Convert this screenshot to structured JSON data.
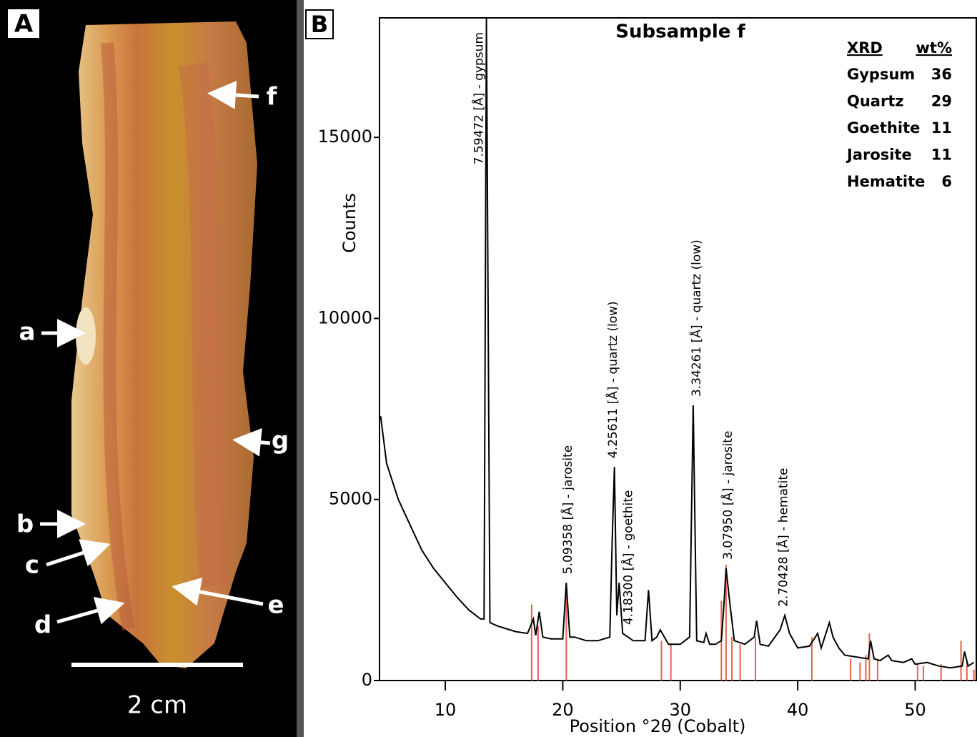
{
  "panel_a": {
    "label": "A",
    "arrow_labels": [
      "a",
      "b",
      "c",
      "d",
      "e",
      "f",
      "g"
    ],
    "scale_bar": "2 cm"
  },
  "chart_data": {
    "type": "line",
    "panel_label": "B",
    "title": "Subsample f",
    "x_label": "Position °2θ (Cobalt)",
    "y_label": "Counts",
    "xlim": [
      4.4,
      55.2
    ],
    "ylim": [
      0,
      18300
    ],
    "xticks": [
      10,
      20,
      30,
      40,
      50
    ],
    "yticks": [
      0,
      5000,
      10000,
      15000
    ],
    "series": [
      {
        "color": "#000000",
        "x": [
          4.5,
          5,
          6,
          7,
          8,
          9,
          10,
          11,
          12,
          13,
          13.3,
          13.5,
          13.8,
          14.5,
          16,
          17,
          17.5,
          17.7,
          18,
          18.3,
          19,
          20,
          20.3,
          20.6,
          21,
          22,
          23,
          24,
          24.2,
          24.4,
          24.6,
          24.8,
          25.1,
          26,
          27,
          27.3,
          27.6,
          28,
          28.3,
          29,
          30,
          30.8,
          31.1,
          31.4,
          32,
          32.2,
          32.5,
          33,
          33.5,
          33.7,
          33.9,
          34.2,
          34.6,
          35.5,
          36.3,
          36.5,
          36.8,
          37.5,
          38.5,
          38.9,
          39.3,
          40,
          41,
          41.7,
          42,
          42.7,
          43,
          43.5,
          44,
          45,
          46,
          46.2,
          46.5,
          47,
          47.7,
          48,
          49,
          49.7,
          50,
          51,
          52,
          53,
          54,
          54.2,
          54.5,
          55
        ],
        "values": [
          7300,
          6000,
          5000,
          4300,
          3600,
          3100,
          2700,
          2300,
          1950,
          1700,
          1700,
          18300,
          1600,
          1500,
          1350,
          1300,
          1700,
          1250,
          1900,
          1200,
          1150,
          1150,
          2700,
          1200,
          1200,
          1100,
          1100,
          1200,
          3800,
          5900,
          1800,
          2700,
          1300,
          1100,
          1100,
          2500,
          1100,
          1200,
          1400,
          1000,
          1000,
          1200,
          7600,
          1100,
          1050,
          1300,
          1000,
          1000,
          1100,
          2000,
          3100,
          2200,
          1100,
          1000,
          1200,
          1650,
          1000,
          950,
          1400,
          1800,
          1300,
          900,
          950,
          1300,
          900,
          1600,
          1200,
          900,
          700,
          650,
          600,
          1100,
          600,
          550,
          700,
          550,
          500,
          600,
          450,
          500,
          400,
          350,
          400,
          800,
          400,
          500
        ]
      }
    ],
    "reference_lines": {
      "color": "#e8604c",
      "x": [
        17.35,
        17.9,
        20.3,
        28.4,
        29.2,
        33.5,
        33.9,
        34.4,
        35.1,
        36.4,
        41.2,
        44.5,
        45.3,
        45.8,
        46.1,
        46.8,
        50.2,
        50.7,
        52.2,
        53.9,
        54.4,
        55
      ],
      "values": [
        2100,
        1500,
        2400,
        1100,
        1000,
        2200,
        3200,
        1200,
        1000,
        1200,
        1200,
        600,
        500,
        700,
        1300,
        600,
        450,
        400,
        450,
        1100,
        500,
        300
      ]
    },
    "annotations": [
      {
        "text": "7.59472 [Å] - gypsum",
        "x": 12.9
      },
      {
        "text": "5.09358 [Å] - jarosite",
        "x": 20.45
      },
      {
        "text": "4.25611 [Å] - quartz (low)",
        "x": 24.3
      },
      {
        "text": "4.18300 [Å] - goethite",
        "x": 25.6
      },
      {
        "text": "3.34261 [Å] - quartz (low)",
        "x": 31.4
      },
      {
        "text": "3.07950 [Å] - jarosite",
        "x": 34.1
      },
      {
        "text": "2.70428 [Å] - hematite",
        "x": 38.8
      }
    ],
    "composition": {
      "header": [
        "XRD",
        "wt%"
      ],
      "rows": [
        [
          "Gypsum",
          "36"
        ],
        [
          "Quartz",
          "29"
        ],
        [
          "Goethite",
          "11"
        ],
        [
          "Jarosite",
          "11"
        ],
        [
          "Hematite",
          "6"
        ]
      ]
    }
  }
}
